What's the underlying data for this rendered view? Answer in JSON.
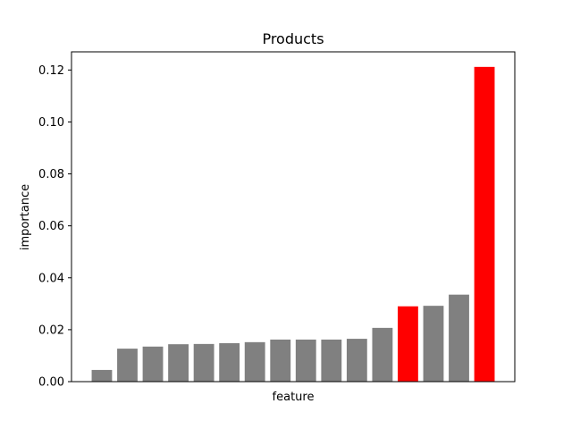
{
  "chart_data": {
    "type": "bar",
    "title": "Products",
    "xlabel": "feature",
    "ylabel": "importance",
    "ylim": [
      0,
      0.127
    ],
    "yticks": [
      "0.00",
      "0.02",
      "0.04",
      "0.06",
      "0.08",
      "0.10",
      "0.12"
    ],
    "values": [
      0.0045,
      0.0127,
      0.0135,
      0.0144,
      0.0145,
      0.0148,
      0.0152,
      0.0162,
      0.0162,
      0.0162,
      0.0165,
      0.0207,
      0.029,
      0.0292,
      0.0335,
      0.1212
    ],
    "colors": [
      "#808080",
      "#808080",
      "#808080",
      "#808080",
      "#808080",
      "#808080",
      "#808080",
      "#808080",
      "#808080",
      "#808080",
      "#808080",
      "#808080",
      "#ff0000",
      "#808080",
      "#808080",
      "#ff0000"
    ],
    "grid": false,
    "legend": "none"
  }
}
